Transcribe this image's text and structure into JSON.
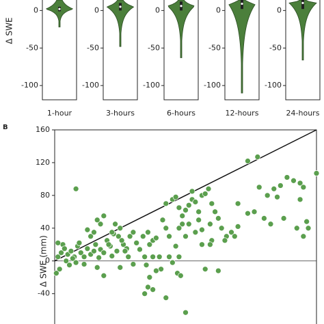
{
  "chart_data": [
    {
      "type": "violin",
      "ylabel": "Δ SWE",
      "categories": [
        "1-hour",
        "3-hours",
        "6-hours",
        "12-hours",
        "24-hours"
      ],
      "color": "#4b7f3b",
      "ylim": [
        -119,
        14
      ],
      "yticks": [
        -100,
        -50,
        0
      ],
      "violins": [
        {
          "min": -22,
          "q1": -1,
          "median": 2,
          "q3": 5,
          "max": 14
        },
        {
          "min": -48,
          "q1": 0,
          "median": 5,
          "q3": 10,
          "max": 14
        },
        {
          "min": -63,
          "q1": 0,
          "median": 6,
          "q3": 12,
          "max": 14
        },
        {
          "min": -110,
          "q1": 2,
          "median": 9,
          "q3": 14,
          "max": 14
        },
        {
          "min": -66,
          "q1": 2,
          "median": 10,
          "q3": 14,
          "max": 14
        }
      ]
    },
    {
      "type": "scatter",
      "panel_label": "B",
      "ylabel": "Δ SWE (mm)",
      "color": "#5b9f4e",
      "xlim": [
        0,
        160
      ],
      "ylim": [
        -77,
        160
      ],
      "yticks": [
        -40,
        0,
        40,
        80,
        120,
        160
      ],
      "hline": 0,
      "identity_line": true,
      "x": [
        3,
        1,
        2,
        4,
        5,
        6,
        8,
        10,
        12,
        14,
        15,
        2,
        7,
        9,
        11,
        13,
        16,
        18,
        20,
        22,
        24,
        25,
        27,
        28,
        30,
        32,
        34,
        35,
        36,
        38,
        40,
        42,
        44,
        45,
        18,
        26,
        13,
        22,
        20,
        28,
        30,
        26,
        24,
        33,
        35,
        37,
        39,
        41,
        43,
        46,
        48,
        50,
        52,
        54,
        55,
        57,
        58,
        60,
        62,
        64,
        66,
        68,
        70,
        72,
        74,
        76,
        78,
        80,
        30,
        40,
        48,
        56,
        60,
        65,
        70,
        75,
        77,
        62,
        57,
        55,
        60,
        58,
        68,
        80,
        92,
        100,
        68,
        72,
        74,
        76,
        78,
        80,
        82,
        84,
        86,
        88,
        90,
        92,
        94,
        96,
        84,
        88,
        76,
        82,
        86,
        90,
        95,
        98,
        100,
        102,
        105,
        108,
        110,
        112,
        104,
        96,
        95,
        90,
        118,
        124,
        112,
        118,
        122,
        128,
        132,
        130,
        134,
        138,
        142,
        136,
        146,
        150,
        152,
        150,
        148,
        155,
        152,
        154,
        160,
        140,
        125
      ],
      "y": [
        -10,
        -15,
        5,
        10,
        20,
        15,
        8,
        12,
        5,
        18,
        22,
        22,
        0,
        -5,
        3,
        -2,
        10,
        5,
        15,
        8,
        12,
        20,
        4,
        14,
        10,
        25,
        18,
        6,
        33,
        12,
        40,
        20,
        15,
        5,
        -4,
        -8,
        88,
        30,
        38,
        45,
        55,
        50,
        35,
        20,
        35,
        45,
        30,
        25,
        12,
        30,
        35,
        22,
        14,
        30,
        5,
        35,
        20,
        25,
        28,
        5,
        50,
        40,
        30,
        -2,
        18,
        5,
        45,
        30,
        -18,
        -8,
        -4,
        -5,
        5,
        -10,
        5,
        -15,
        -18,
        -12,
        -32,
        -40,
        -35,
        -20,
        -45,
        -63,
        -10,
        -12,
        70,
        75,
        78,
        65,
        55,
        62,
        68,
        75,
        72,
        60,
        80,
        82,
        88,
        70,
        85,
        50,
        40,
        45,
        35,
        38,
        45,
        60,
        52,
        40,
        30,
        35,
        30,
        42,
        25,
        25,
        20,
        20,
        122,
        127,
        70,
        58,
        60,
        52,
        45,
        80,
        88,
        92,
        102,
        78,
        98,
        95,
        90,
        75,
        40,
        40,
        30,
        48,
        107,
        52,
        90
      ]
    }
  ]
}
